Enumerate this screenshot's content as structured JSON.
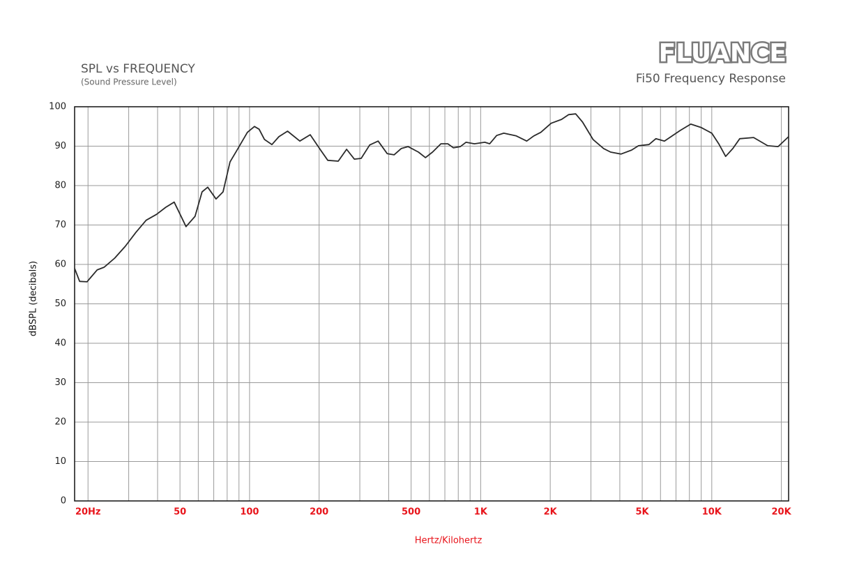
{
  "chart_data": {
    "type": "line",
    "title": "SPL vs FREQUENCY",
    "subtitle": "(Sound Pressure Level)",
    "brand": "FLUANCE",
    "chart_name": "Fi50 Frequency Response",
    "xlabel": "Hertz/Kilohertz",
    "ylabel": "dBSPL (decibals)",
    "xscale": "log",
    "grid": true,
    "color": "#2a2a2a",
    "xlim": [
      17.5,
      21500
    ],
    "ylim": [
      0,
      100
    ],
    "xticks": [
      {
        "value": 20,
        "label": "20Hz"
      },
      50,
      100,
      200,
      500,
      {
        "value": 1000,
        "label": "1K"
      },
      {
        "value": 2000,
        "label": "2K"
      },
      {
        "value": 5000,
        "label": "5K"
      },
      {
        "value": 10000,
        "label": "10K"
      },
      {
        "value": 20000,
        "label": "20K"
      }
    ],
    "xminor": [
      20,
      30,
      40,
      50,
      60,
      70,
      80,
      90,
      100,
      200,
      300,
      400,
      500,
      600,
      700,
      800,
      900,
      1000,
      2000,
      3000,
      4000,
      5000,
      6000,
      7000,
      8000,
      9000,
      10000,
      20000
    ],
    "yticks": [
      0,
      10,
      20,
      30,
      40,
      50,
      60,
      70,
      80,
      90,
      100
    ],
    "x": [
      17.5,
      18.4,
      19.8,
      21.9,
      23.5,
      26.1,
      29,
      32.2,
      35.7,
      39.6,
      43.4,
      47.2,
      53.1,
      58.1,
      62.3,
      65.9,
      71.6,
      76.8,
      82.3,
      88.3,
      97.9,
      105,
      110,
      116,
      125,
      134,
      146,
      165,
      183,
      203,
      218,
      242,
      263,
      284,
      304,
      331,
      360,
      394,
      422,
      453,
      485,
      538,
      577,
      619,
      673,
      721,
      762,
      817,
      864,
      940,
      1042,
      1094,
      1173,
      1259,
      1426,
      1582,
      1698,
      1820,
      2018,
      2239,
      2404,
      2576,
      2761,
      3064,
      3404,
      3648,
      4046,
      4498,
      4819,
      5346,
      5728,
      6237,
      7311,
      8110,
      9016,
      10000,
      10715,
      11482,
      12331,
      13213,
      15171,
      17458,
      19364,
      21500
    ],
    "values": [
      59,
      55.7,
      55.6,
      58.6,
      59.3,
      61.6,
      64.6,
      68.1,
      71.2,
      72.7,
      74.5,
      75.8,
      69.6,
      72.2,
      78.4,
      79.6,
      76.6,
      78.4,
      86,
      89,
      93.5,
      95,
      94.3,
      91.7,
      90.4,
      92.4,
      93.8,
      91.3,
      92.9,
      89,
      86.4,
      86.2,
      89.2,
      86.7,
      86.9,
      90.3,
      91.3,
      88.1,
      87.8,
      89.4,
      89.9,
      88.5,
      87.1,
      88.5,
      90.6,
      90.6,
      89.6,
      89.9,
      91,
      90.6,
      91,
      90.6,
      92.7,
      93.3,
      92.6,
      91.3,
      92.6,
      93.5,
      95.8,
      96.8,
      98,
      98.2,
      96.1,
      91.7,
      89.4,
      88.5,
      88,
      89,
      90.1,
      90.4,
      91.9,
      91.3,
      94,
      95.6,
      94.7,
      93.3,
      90.6,
      87.4,
      89.4,
      91.9,
      92.2,
      90.1,
      89.9,
      92.4
    ]
  }
}
